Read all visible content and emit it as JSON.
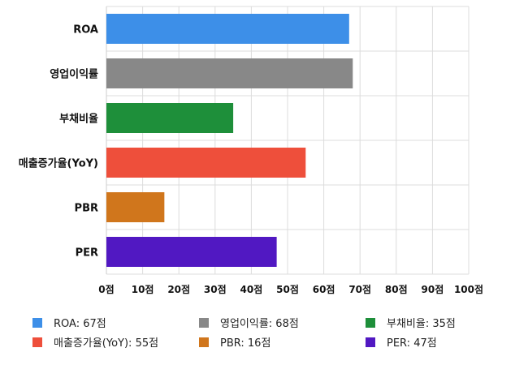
{
  "chart_data": {
    "type": "bar",
    "orientation": "horizontal",
    "categories": [
      "ROA",
      "영업이익률",
      "부채비율",
      "매출증가율(YoY)",
      "PBR",
      "PER"
    ],
    "values": [
      67,
      68,
      35,
      55,
      16,
      47
    ],
    "colors": [
      "#3d8fe8",
      "#888888",
      "#1e8f3a",
      "#ee4f3b",
      "#d0761c",
      "#5118c2"
    ],
    "xlim": [
      0,
      100
    ],
    "xticks": [
      "0점",
      "10점",
      "20점",
      "30점",
      "40점",
      "50점",
      "60점",
      "70점",
      "80점",
      "90점",
      "100점"
    ],
    "grid": true,
    "legend": {
      "placement": "bottom",
      "entries": [
        "ROA: 67점",
        "영업이익률: 68점",
        "부채비율: 35점",
        "매출증가율(YoY): 55점",
        "PBR: 16점",
        "PER: 47점"
      ]
    }
  }
}
